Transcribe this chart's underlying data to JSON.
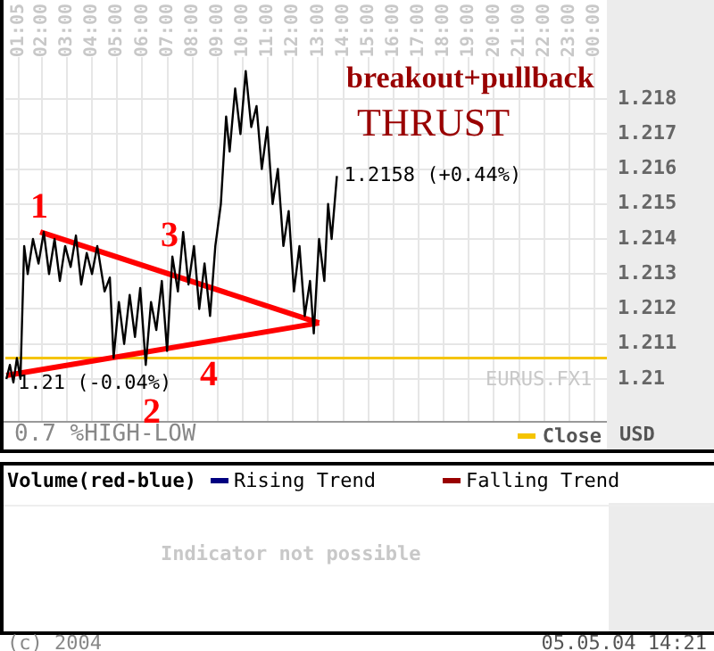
{
  "chart_data": [
    {
      "type": "line",
      "title": "breakout+pullback",
      "ylabel": "USD",
      "annotations": [
        "THRUST",
        "EURUS.FX1",
        "0.7 %HIGH-LOW",
        "1",
        "2",
        "3",
        "4",
        "1.21 (-0.04%)",
        {
          "text": "1.2158 (+0.44%)",
          "x": 13.75,
          "y": 1.2158
        }
      ],
      "series": [
        {
          "color": "#000000",
          "x": [
            0.59,
            0.73,
            0.87,
            1.01,
            1.15,
            1.3,
            1.44,
            1.65,
            1.87,
            2.08,
            2.29,
            2.51,
            2.72,
            2.93,
            3.15,
            3.36,
            3.57,
            3.79,
            4.0,
            4.21,
            4.5,
            4.71,
            4.86,
            5.07,
            5.28,
            5.5,
            5.71,
            5.92,
            6.14,
            6.35,
            6.56,
            6.78,
            6.99,
            7.2,
            7.42,
            7.63,
            7.84,
            8.06,
            8.27,
            8.48,
            8.7,
            8.91,
            9.13,
            9.34,
            9.48,
            9.7,
            9.91,
            10.12,
            10.34,
            10.55,
            10.76,
            10.98,
            11.19,
            11.4,
            11.62,
            11.83,
            12.04,
            12.26,
            12.47,
            12.68,
            12.83,
            13.04,
            13.25,
            13.4,
            13.54,
            13.75
          ],
          "values": [
            1.21,
            1.2104,
            1.2099,
            1.2106,
            1.21,
            1.2138,
            1.213,
            1.214,
            1.2133,
            1.2142,
            1.213,
            1.214,
            1.2128,
            1.2138,
            1.2132,
            1.2141,
            1.2127,
            1.2136,
            1.213,
            1.2138,
            1.2125,
            1.2129,
            1.2106,
            1.2122,
            1.211,
            1.2124,
            1.2112,
            1.2126,
            1.2104,
            1.2122,
            1.2114,
            1.2128,
            1.2108,
            1.2135,
            1.2125,
            1.2142,
            1.2127,
            1.2138,
            1.212,
            1.2133,
            1.2118,
            1.2138,
            1.215,
            1.2175,
            1.2165,
            1.2183,
            1.217,
            1.2188,
            1.2172,
            1.2178,
            1.216,
            1.2172,
            1.215,
            1.216,
            1.2138,
            1.2148,
            1.2125,
            1.2138,
            1.2118,
            1.2128,
            1.2113,
            1.214,
            1.2128,
            1.215,
            1.214,
            1.2158
          ]
        },
        {
          "color": "#ff0000",
          "x": [
            1.94,
            13.04
          ],
          "values": [
            1.2142,
            1.2116
          ]
        },
        {
          "color": "#ff0000",
          "x": [
            0.59,
            13.04
          ],
          "values": [
            1.2101,
            1.2116
          ]
        }
      ],
      "ref_lines": [
        {
          "axis": "y",
          "value": 1.2106,
          "label": "Close",
          "color": "#f5c400"
        }
      ],
      "xlim": [
        0.55,
        24.5
      ],
      "xticks": [
        {
          "value": 1.0833,
          "label": "01:05"
        },
        {
          "value": 2,
          "label": "02:00"
        },
        {
          "value": 3,
          "label": "03:00"
        },
        {
          "value": 4,
          "label": "04:00"
        },
        {
          "value": 5,
          "label": "05:00"
        },
        {
          "value": 6,
          "label": "06:00"
        },
        {
          "value": 7,
          "label": "07:00"
        },
        {
          "value": 8,
          "label": "08:00"
        },
        {
          "value": 9,
          "label": "09:00"
        },
        {
          "value": 10,
          "label": "10:00"
        },
        {
          "value": 11,
          "label": "11:00"
        },
        {
          "value": 12,
          "label": "12:00"
        },
        {
          "value": 13,
          "label": "13:00"
        },
        {
          "value": 14,
          "label": "14:00"
        },
        {
          "value": 15,
          "label": "15:00"
        },
        {
          "value": 16,
          "label": "16:00"
        },
        {
          "value": 17,
          "label": "17:00"
        },
        {
          "value": 18,
          "label": "18:00"
        },
        {
          "value": 19,
          "label": "19:00"
        },
        {
          "value": 20,
          "label": "20:00"
        },
        {
          "value": 21,
          "label": "21:00"
        },
        {
          "value": 22,
          "label": "22:00"
        },
        {
          "value": 23,
          "label": "23:00"
        },
        {
          "value": 24,
          "label": "00:00"
        }
      ],
      "ylim": [
        1.2088,
        1.2192
      ],
      "yticks": [
        1.21,
        1.211,
        1.212,
        1.213,
        1.214,
        1.215,
        1.216,
        1.217,
        1.218
      ],
      "grid": true
    },
    {
      "type": "other",
      "title": "Volume(red-blue)",
      "series": [
        {
          "name": "Rising Trend",
          "color": "#000080"
        },
        {
          "name": "Falling Trend",
          "color": "#990000"
        }
      ],
      "annotations": [
        "Indicator not possible",
        "(c) 2004",
        "05.05.04 14:21"
      ]
    }
  ]
}
